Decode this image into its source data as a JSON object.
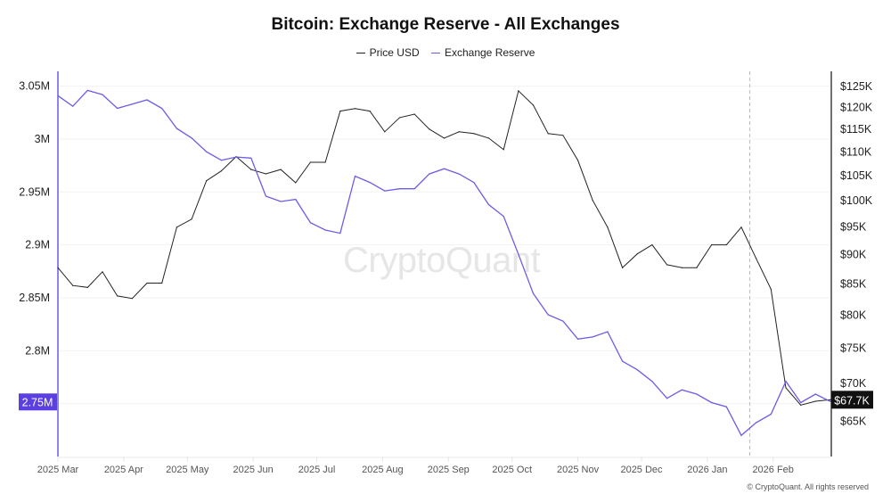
{
  "chart_data": {
    "type": "line",
    "title": "Bitcoin: Exchange Reserve - All Exchanges",
    "x": [
      "2025-03-01",
      "2025-03-08",
      "2025-03-15",
      "2025-03-22",
      "2025-03-29",
      "2025-04-05",
      "2025-04-12",
      "2025-04-19",
      "2025-04-26",
      "2025-05-03",
      "2025-05-10",
      "2025-05-17",
      "2025-05-24",
      "2025-05-31",
      "2025-06-07",
      "2025-06-14",
      "2025-06-21",
      "2025-06-28",
      "2025-07-05",
      "2025-07-12",
      "2025-07-19",
      "2025-07-26",
      "2025-08-02",
      "2025-08-09",
      "2025-08-16",
      "2025-08-23",
      "2025-08-30",
      "2025-09-06",
      "2025-09-13",
      "2025-09-20",
      "2025-09-27",
      "2025-10-04",
      "2025-10-11",
      "2025-10-18",
      "2025-10-25",
      "2025-11-01",
      "2025-11-08",
      "2025-11-15",
      "2025-11-22",
      "2025-11-29",
      "2025-12-06",
      "2025-12-13",
      "2025-12-20",
      "2025-12-27",
      "2026-01-03",
      "2026-01-10",
      "2026-01-17",
      "2026-01-24",
      "2026-01-31",
      "2026-02-07",
      "2026-02-14",
      "2026-02-21",
      "2026-02-28"
    ],
    "series": [
      {
        "name": "Price USD",
        "axis": "right",
        "color": "#222222",
        "values": [
          87.6,
          84.6,
          84.3,
          86.9,
          82.9,
          82.5,
          85.0,
          85.0,
          94.8,
          96.3,
          103.8,
          105.8,
          108.8,
          106.1,
          105.2,
          106.1,
          103.4,
          107.6,
          107.6,
          118.9,
          119.5,
          118.9,
          114.2,
          117.4,
          118.2,
          114.8,
          112.8,
          114.2,
          113.8,
          112.8,
          110.3,
          123.7,
          120.3,
          113.8,
          113.4,
          108.0,
          99.9,
          94.8,
          87.6,
          90.0,
          91.6,
          88.1,
          87.6,
          87.6,
          91.6,
          91.6,
          94.8,
          89.2,
          84.0,
          69.3,
          67.0,
          67.5,
          67.7
        ]
      },
      {
        "name": "Exchange Reserve",
        "axis": "left",
        "color": "#6c5ce7",
        "values": [
          3.041,
          3.031,
          3.046,
          3.042,
          3.029,
          3.033,
          3.037,
          3.029,
          3.01,
          3.001,
          2.988,
          2.98,
          2.983,
          2.982,
          2.946,
          2.941,
          2.943,
          2.921,
          2.914,
          2.911,
          2.965,
          2.959,
          2.951,
          2.953,
          2.953,
          2.967,
          2.972,
          2.967,
          2.959,
          2.938,
          2.927,
          2.891,
          2.854,
          2.834,
          2.828,
          2.811,
          2.813,
          2.818,
          2.79,
          2.782,
          2.771,
          2.755,
          2.763,
          2.759,
          2.751,
          2.747,
          2.72,
          2.732,
          2.74,
          2.771,
          2.751,
          2.759,
          2.752
        ]
      }
    ],
    "left_axis": {
      "unit": "M",
      "ylim": [
        2.7,
        3.064
      ],
      "ticks": [
        3.05,
        3.0,
        2.95,
        2.9,
        2.85,
        2.8,
        2.75
      ],
      "tick_labels": [
        "3.05M",
        "3M",
        "2.95M",
        "2.9M",
        "2.85M",
        "2.8M",
        "2.75M"
      ],
      "current_label": "2.75M"
    },
    "right_axis": {
      "unit": "K USD",
      "scale": "log",
      "ylim": [
        60.6,
        128.5
      ],
      "ticks": [
        125,
        120,
        115,
        110,
        105,
        100,
        95,
        90,
        85,
        80,
        75,
        70,
        65
      ],
      "tick_labels": [
        "$125K",
        "$120K",
        "$115K",
        "$110K",
        "$105K",
        "$100K",
        "$95K",
        "$90K",
        "$85K",
        "$80K",
        "$75K",
        "$70K",
        "$65K"
      ],
      "current_label": "$67.7K"
    },
    "xlim": [
      "2025-03-01",
      "2026-02-28"
    ],
    "x_ticks": [
      {
        "date": "2025-03-01",
        "label": "2025 Mar"
      },
      {
        "date": "2025-04-01",
        "label": "2025 Apr"
      },
      {
        "date": "2025-05-01",
        "label": "2025 May"
      },
      {
        "date": "2025-06-01",
        "label": "2025 Jun"
      },
      {
        "date": "2025-07-01",
        "label": "2025 Jul"
      },
      {
        "date": "2025-08-01",
        "label": "2025 Aug"
      },
      {
        "date": "2025-09-01",
        "label": "2025 Sep"
      },
      {
        "date": "2025-10-01",
        "label": "2025 Oct"
      },
      {
        "date": "2025-11-01",
        "label": "2025 Nov"
      },
      {
        "date": "2025-12-01",
        "label": "2025 Dec"
      },
      {
        "date": "2026-01-01",
        "label": "2026 Jan"
      },
      {
        "date": "2026-02-01",
        "label": "2026 Feb"
      }
    ],
    "vline_date": "2026-01-21",
    "grid": true,
    "legend": "top-center"
  },
  "watermark": "CryptoQuant",
  "footer": "© CryptoQuant. All rights reserved"
}
